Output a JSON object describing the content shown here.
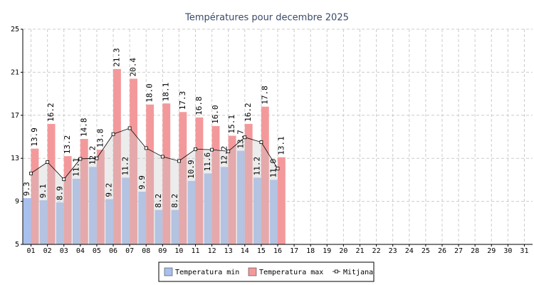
{
  "chart_data": {
    "type": "bar",
    "title": "Températures pour decembre 2025",
    "categories": [
      "01",
      "02",
      "03",
      "04",
      "05",
      "06",
      "07",
      "08",
      "09",
      "10",
      "11",
      "12",
      "13",
      "14",
      "15",
      "16",
      "17",
      "18",
      "19",
      "20",
      "21",
      "22",
      "23",
      "24",
      "25",
      "26",
      "27",
      "28",
      "29",
      "30",
      "31"
    ],
    "series": [
      {
        "name": "Temperatura min",
        "type": "bar",
        "color": "#a8c0ee",
        "values": [
          9.3,
          9.1,
          8.9,
          11.1,
          12.2,
          9.2,
          11.2,
          9.9,
          8.2,
          8.2,
          10.9,
          11.6,
          12.2,
          13.7,
          11.2,
          11.0,
          null,
          null,
          null,
          null,
          null,
          null,
          null,
          null,
          null,
          null,
          null,
          null,
          null,
          null,
          null
        ],
        "value_labels": [
          "9.3",
          "9.1",
          "8.9",
          "11.1",
          "12.2",
          "9.2",
          "11.2",
          "9.9",
          "8.2",
          "8.2",
          "10.9",
          "11.6",
          "12.2",
          "13.7",
          "11.2",
          "11.0",
          null,
          null,
          null,
          null,
          null,
          null,
          null,
          null,
          null,
          null,
          null,
          null,
          null,
          null,
          null
        ]
      },
      {
        "name": "Temperatura max",
        "type": "bar",
        "color": "#f4999b",
        "values": [
          13.9,
          16.2,
          13.2,
          14.8,
          13.8,
          21.3,
          20.4,
          18.0,
          18.1,
          17.3,
          16.8,
          16.0,
          15.1,
          16.2,
          17.8,
          13.1,
          null,
          null,
          null,
          null,
          null,
          null,
          null,
          null,
          null,
          null,
          null,
          null,
          null,
          null,
          null
        ],
        "value_labels": [
          "13.9",
          "16.2",
          "13.2",
          "14.8",
          "13.8",
          "21.3",
          "20.4",
          "18.0",
          "18.1",
          "17.3",
          "16.8",
          "16.0",
          "15.1",
          "16.2",
          "17.8",
          "13.1",
          null,
          null,
          null,
          null,
          null,
          null,
          null,
          null,
          null,
          null,
          null,
          null,
          null,
          null,
          null
        ]
      },
      {
        "name": "Mitjana",
        "type": "line",
        "color": "#000000",
        "values": [
          11.6,
          12.65,
          11.05,
          12.95,
          13.0,
          15.25,
          15.8,
          13.95,
          13.15,
          12.75,
          13.85,
          13.8,
          13.65,
          14.95,
          14.5,
          12.05,
          null,
          null,
          null,
          null,
          null,
          null,
          null,
          null,
          null,
          null,
          null,
          null,
          null,
          null,
          null
        ]
      }
    ],
    "ylim": [
      5,
      25
    ],
    "yticks": [
      5,
      9,
      13,
      17,
      21,
      25
    ],
    "grid": true,
    "legend": "bottom"
  }
}
